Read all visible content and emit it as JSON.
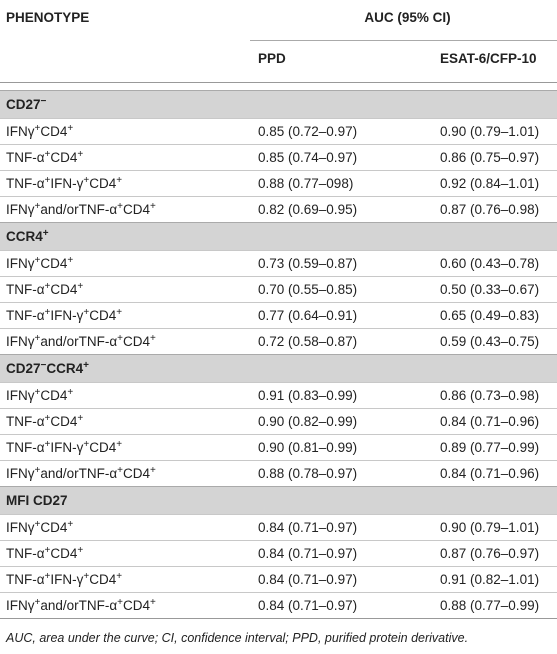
{
  "header": {
    "phenotype": "PHENOTYPE",
    "auc": "AUC (95% CI)",
    "columns": [
      "PPD",
      "ESAT-6/CFP-10"
    ]
  },
  "groups": [
    {
      "title": [
        "CD27",
        "−"
      ],
      "rows": [
        {
          "label": [
            "IFNγ",
            "+",
            "CD4",
            "+"
          ],
          "values": [
            "0.85 (0.72–0.97)",
            "0.90 (0.79–1.01)"
          ]
        },
        {
          "label": [
            "TNF-α",
            "+",
            "CD4",
            "+"
          ],
          "values": [
            "0.85 (0.74–0.97)",
            "0.86 (0.75–0.97)"
          ]
        },
        {
          "label": [
            "TNF-α",
            "+",
            "IFN-γ",
            "+",
            "CD4",
            "+"
          ],
          "values": [
            "0.88 (0.77–098)",
            "0.92 (0.84–1.01)"
          ]
        },
        {
          "label": [
            "IFNγ",
            "+",
            "and/orTNF-α",
            "+",
            "CD4",
            "+"
          ],
          "values": [
            "0.82 (0.69–0.95)",
            "0.87 (0.76–0.98)"
          ]
        }
      ]
    },
    {
      "title": [
        "CCR4",
        "+"
      ],
      "rows": [
        {
          "label": [
            "IFNγ",
            "+",
            "CD4",
            "+"
          ],
          "values": [
            "0.73 (0.59–0.87)",
            "0.60 (0.43–0.78)"
          ]
        },
        {
          "label": [
            "TNF-α",
            "+",
            "CD4",
            "+"
          ],
          "values": [
            "0.70 (0.55–0.85)",
            "0.50 (0.33–0.67)"
          ]
        },
        {
          "label": [
            "TNF-α",
            "+",
            "IFN-γ",
            "+",
            "CD4",
            "+"
          ],
          "values": [
            "0.77 (0.64–0.91)",
            "0.65 (0.49–0.83)"
          ]
        },
        {
          "label": [
            "IFNγ",
            "+",
            "and/orTNF-α",
            "+",
            "CD4",
            "+"
          ],
          "values": [
            "0.72 (0.58–0.87)",
            "0.59 (0.43–0.75)"
          ]
        }
      ]
    },
    {
      "title": [
        "CD27",
        "−",
        "CCR4",
        "+"
      ],
      "rows": [
        {
          "label": [
            "IFNγ",
            "+",
            "CD4",
            "+"
          ],
          "values": [
            "0.91 (0.83–0.99)",
            "0.86 (0.73–0.98)"
          ]
        },
        {
          "label": [
            "TNF-α",
            "+",
            "CD4",
            "+"
          ],
          "values": [
            "0.90 (0.82–0.99)",
            "0.84 (0.71–0.96)"
          ]
        },
        {
          "label": [
            "TNF-α",
            "+",
            "IFN-γ",
            "+",
            "CD4",
            "+"
          ],
          "values": [
            "0.90 (0.81–0.99)",
            "0.89 (0.77–0.99)"
          ]
        },
        {
          "label": [
            "IFNγ",
            "+",
            "and/orTNF-α",
            "+",
            "CD4",
            "+"
          ],
          "values": [
            "0.88 (0.78–0.97)",
            "0.84 (0.71–0.96)"
          ]
        }
      ]
    },
    {
      "title": [
        "MFI CD27"
      ],
      "rows": [
        {
          "label": [
            "IFNγ",
            "+",
            "CD4",
            "+"
          ],
          "values": [
            "0.84 (0.71–0.97)",
            "0.90 (0.79–1.01)"
          ]
        },
        {
          "label": [
            "TNF-α",
            "+",
            "CD4",
            "+"
          ],
          "values": [
            "0.84 (0.71–0.97)",
            "0.87 (0.76–0.97)"
          ]
        },
        {
          "label": [
            "TNF-α",
            "+",
            "IFN-γ",
            "+",
            "CD4",
            "+"
          ],
          "values": [
            "0.84 (0.71–0.97)",
            "0.91 (0.82–1.01)"
          ]
        },
        {
          "label": [
            "IFNγ",
            "+",
            "and/orTNF-α",
            "+",
            "CD4",
            "+"
          ],
          "values": [
            "0.84 (0.71–0.97)",
            "0.88 (0.77–0.99)"
          ]
        }
      ]
    }
  ],
  "footnote": "AUC, area under the curve; CI, confidence interval; PPD, purified protein derivative."
}
